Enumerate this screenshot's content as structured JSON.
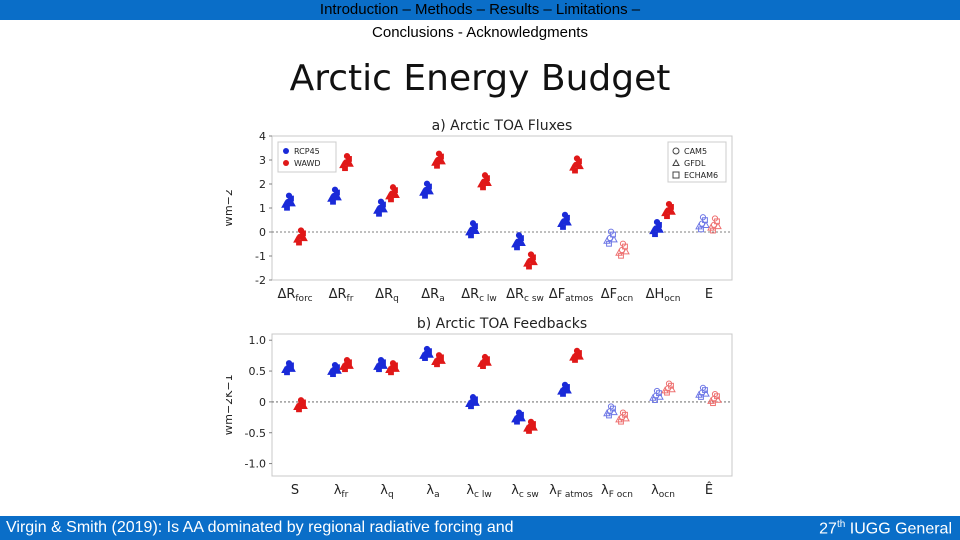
{
  "header": {
    "nav_line1": "Introduction – Methods – Results – Limitations –",
    "nav_line2": "Conclusions - Acknowledgments",
    "title": "Arctic Energy Budget"
  },
  "footer": {
    "citation": "Virgin & Smith (2019): Is AA dominated by regional radiative forcing and",
    "event_ordinal": "27",
    "event_ordinal_suffix": "th",
    "event_name": " IUGG General"
  },
  "colors": {
    "bar": "#0a6ec8",
    "rcp": "#1a2ad8",
    "wawd": "#e01818",
    "rcp_light": "#6f78e6",
    "wawd_light": "#ee7272"
  },
  "chart_data": [
    {
      "type": "scatter",
      "title": "a) Arctic TOA Fluxes",
      "ylabel": "Wm−2",
      "ylim": [
        -2,
        4
      ],
      "yticks": [
        "4",
        "3",
        "2",
        "1",
        "0",
        "-1",
        "-2"
      ],
      "categories": [
        "ΔRforc",
        "ΔRfr",
        "ΔRq",
        "ΔRa",
        "ΔRc lw",
        "ΔRc sw",
        "ΔFatmos",
        "ΔFocn",
        "ΔHocn",
        "E"
      ],
      "legend_experiments": [
        "RCP45",
        "WAWD"
      ],
      "legend_models": [
        "CAM5",
        "GFDL",
        "ECHAM6"
      ],
      "legend_placement": [
        "top-left",
        "top-right"
      ],
      "grid": false,
      "series": [
        {
          "name": "RCP45",
          "values": [
            1.25,
            1.5,
            1.0,
            1.75,
            0.1,
            -0.4,
            0.45,
            -0.25,
            0.15,
            0.35
          ]
        },
        {
          "name": "WAWD",
          "values": [
            -0.2,
            2.9,
            1.6,
            3.0,
            2.1,
            -1.2,
            2.8,
            -0.75,
            0.9,
            0.3
          ]
        }
      ]
    },
    {
      "type": "scatter",
      "title": "b) Arctic TOA Feedbacks",
      "ylabel": "Wm−2K−1",
      "ylim": [
        -1.2,
        1.1
      ],
      "yticks": [
        "1.0",
        "0.5",
        "0",
        "-0.5",
        "-1.0"
      ],
      "categories": [
        "S",
        "λfr",
        "λq",
        "λa",
        "λc lw",
        "λc sw",
        "λF atmos",
        "λF ocn",
        "λocn",
        "Ê"
      ],
      "grid": false,
      "series": [
        {
          "name": "RCP45",
          "values": [
            0.55,
            0.52,
            0.6,
            0.78,
            0.0,
            -0.25,
            0.2,
            -0.15,
            0.1,
            0.15
          ]
        },
        {
          "name": "WAWD",
          "values": [
            -0.05,
            0.6,
            0.55,
            0.68,
            0.65,
            -0.4,
            0.75,
            -0.25,
            0.22,
            0.05
          ]
        }
      ]
    }
  ]
}
